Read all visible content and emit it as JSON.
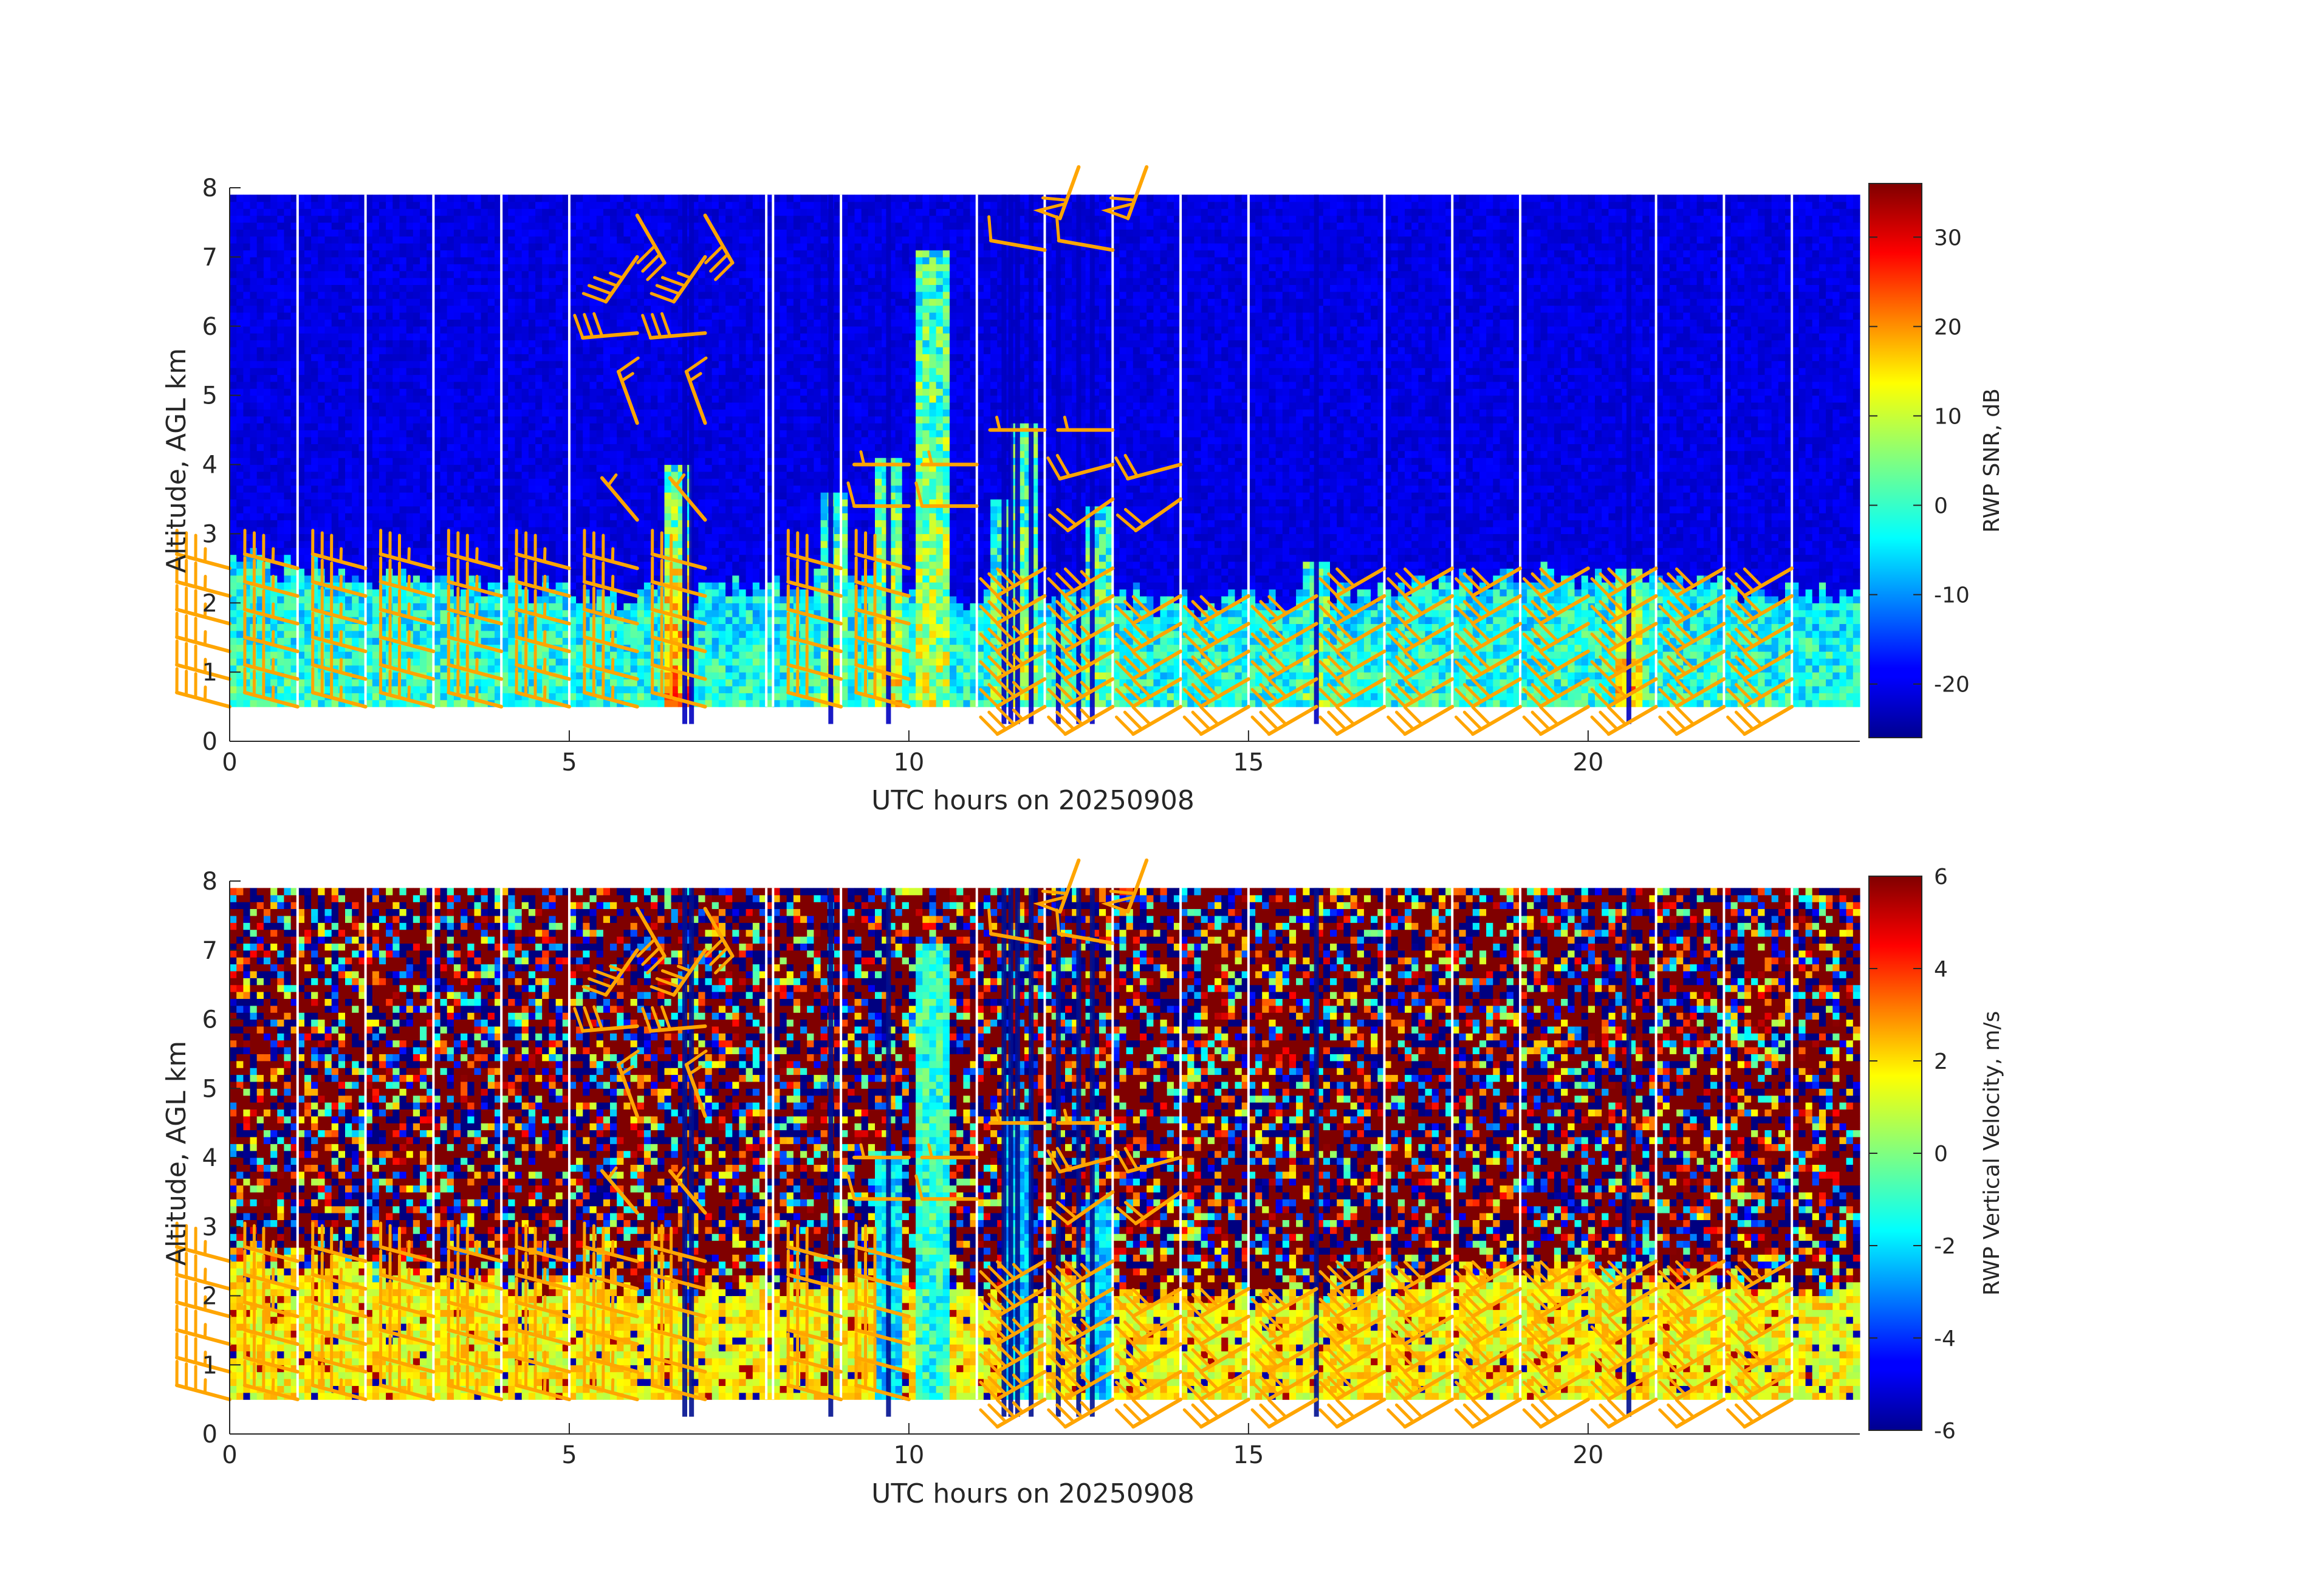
{
  "colors": {
    "barb": "#ffa500",
    "axis": "#262626",
    "missing_column": "#ffffff",
    "colormap": "jet"
  },
  "chart_data": [
    {
      "type": "heatmap",
      "name": "snr-panel",
      "title": "",
      "xlabel": "UTC hours on 20250908",
      "ylabel": "Altitude, AGL km",
      "xlim": [
        0,
        24
      ],
      "ylim": [
        0,
        8
      ],
      "xticks": [
        0,
        5,
        10,
        15,
        20
      ],
      "yticks": [
        0,
        1,
        2,
        3,
        4,
        5,
        6,
        7,
        8
      ],
      "data_range_km": [
        0.5,
        7.9
      ],
      "colorbar": {
        "label": "RWP SNR, dB",
        "range": [
          -26,
          36
        ],
        "ticks": [
          -20,
          -10,
          0,
          10,
          20,
          30
        ]
      },
      "description_values": {
        "background_value": -20,
        "boundary_layer_top_km": [
          [
            0,
            2.6
          ],
          [
            2,
            2.4
          ],
          [
            4,
            2.2
          ],
          [
            6,
            2.1
          ],
          [
            8,
            2.2
          ],
          [
            9,
            2.3
          ],
          [
            11,
            2.0
          ],
          [
            12,
            2.2
          ],
          [
            14,
            2.0
          ],
          [
            16,
            2.1
          ],
          [
            18,
            2.3
          ],
          [
            20,
            2.4
          ],
          [
            24,
            2.1
          ]
        ],
        "boundary_layer_value": -5
      },
      "convective_columns": [
        {
          "x": 6.6,
          "top_km": 4.0,
          "peak": 25
        },
        {
          "x": 8.9,
          "top_km": 3.6,
          "peak": 10
        },
        {
          "x": 9.7,
          "top_km": 4.1,
          "peak": 15
        },
        {
          "x": 10.35,
          "top_km": 7.1,
          "peak": 10
        },
        {
          "x": 11.4,
          "top_km": 3.5,
          "peak": 5
        },
        {
          "x": 11.7,
          "top_km": 4.6,
          "peak": 10
        },
        {
          "x": 12.8,
          "top_km": 3.4,
          "peak": 5
        },
        {
          "x": 16.0,
          "top_km": 2.6,
          "peak": 5
        },
        {
          "x": 20.6,
          "top_km": 2.5,
          "peak": 25
        }
      ],
      "missing_columns_x": [
        1.0,
        2.0,
        3.0,
        4.0,
        5.0,
        7.9,
        8.0,
        9.0,
        11.0,
        12.0,
        13.0,
        14.0,
        15.0,
        17.0,
        18.0,
        19.0,
        21.0,
        22.0,
        23.0
      ],
      "dropout_columns_x": [
        6.7,
        6.8,
        8.85,
        9.7,
        11.4,
        11.5,
        11.6,
        11.8,
        12.2,
        12.5,
        12.7,
        16.0,
        20.6
      ]
    },
    {
      "type": "heatmap",
      "name": "velocity-panel",
      "title": "",
      "xlabel": "UTC hours on 20250908",
      "ylabel": "Altitude, AGL km",
      "xlim": [
        0,
        24
      ],
      "ylim": [
        0,
        8
      ],
      "xticks": [
        0,
        5,
        10,
        15,
        20
      ],
      "yticks": [
        0,
        1,
        2,
        3,
        4,
        5,
        6,
        7,
        8
      ],
      "data_range_km": [
        0.5,
        7.9
      ],
      "colorbar": {
        "label": "RWP Vertical Velocity, m/s",
        "range": [
          -6,
          6
        ],
        "ticks": [
          -6,
          -4,
          -2,
          0,
          2,
          4,
          6
        ]
      },
      "description_values": {
        "noise_value_range": [
          -6,
          6
        ],
        "boundary_layer_value": 1.5,
        "boundary_layer_top_km": [
          [
            0,
            2.6
          ],
          [
            2,
            2.4
          ],
          [
            4,
            2.2
          ],
          [
            6,
            2.1
          ],
          [
            8,
            2.2
          ],
          [
            9,
            2.3
          ],
          [
            11,
            2.0
          ],
          [
            12,
            2.2
          ],
          [
            14,
            2.0
          ],
          [
            16,
            2.1
          ],
          [
            18,
            2.3
          ],
          [
            20,
            2.4
          ],
          [
            24,
            2.1
          ]
        ]
      },
      "updraft_columns": [
        {
          "x": 10.35,
          "top_km": 7.1,
          "value": -1
        },
        {
          "x": 9.7,
          "top_km": 4.1,
          "value": -2
        },
        {
          "x": 11.6,
          "top_km": 4.6,
          "value": -2
        },
        {
          "x": 12.8,
          "top_km": 3.4,
          "value": -2
        }
      ],
      "missing_columns_x": [
        1.0,
        2.0,
        3.0,
        4.0,
        5.0,
        7.9,
        8.0,
        9.0,
        11.0,
        12.0,
        13.0,
        14.0,
        15.0,
        17.0,
        18.0,
        19.0,
        21.0,
        22.0,
        23.0
      ],
      "dropout_columns_x": [
        6.7,
        6.8,
        8.85,
        9.7,
        11.4,
        11.5,
        11.6,
        11.8,
        12.2,
        12.5,
        12.7,
        16.0,
        20.6
      ]
    }
  ],
  "wind_barbs": {
    "units": "knots (full barb 10, half barb 5, flag 50)",
    "low_levels_km": [
      0.5,
      0.9,
      1.3,
      1.7,
      2.1,
      2.5
    ],
    "low_columns": [
      {
        "x": 0.0,
        "levels": [
          0,
          1,
          2,
          3,
          4,
          5
        ],
        "dir": 285,
        "spd": 35
      },
      {
        "x": 1.0,
        "levels": [
          0,
          1,
          2,
          3,
          4,
          5
        ],
        "dir": 285,
        "spd": 35
      },
      {
        "x": 2.0,
        "levels": [
          0,
          1,
          2,
          3,
          4,
          5
        ],
        "dir": 285,
        "spd": 35
      },
      {
        "x": 3.0,
        "levels": [
          0,
          1,
          2,
          3,
          4,
          5
        ],
        "dir": 285,
        "spd": 35
      },
      {
        "x": 4.0,
        "levels": [
          0,
          1,
          2,
          3,
          4,
          5
        ],
        "dir": 285,
        "spd": 35
      },
      {
        "x": 5.0,
        "levels": [
          0,
          1,
          2,
          3,
          4,
          5
        ],
        "dir": 285,
        "spd": 35
      },
      {
        "x": 6.0,
        "levels": [
          0,
          1,
          2,
          3,
          4,
          5
        ],
        "dir": 285,
        "spd": 35
      },
      {
        "x": 7.0,
        "levels": [
          0,
          1,
          2,
          3,
          4,
          5
        ],
        "dir": 285,
        "spd": 30
      },
      {
        "x": 9.0,
        "levels": [
          0,
          1,
          2,
          3,
          4,
          5
        ],
        "dir": 285,
        "spd": 30
      },
      {
        "x": 10.0,
        "levels": [
          0,
          1,
          2,
          3,
          4,
          5
        ],
        "dir": 285,
        "spd": 30
      },
      {
        "x": 12.0,
        "levels": [
          0,
          1,
          2,
          3,
          4,
          5
        ],
        "dir": 240,
        "spd": 35
      },
      {
        "x": 13.0,
        "levels": [
          0,
          1,
          2,
          3,
          4,
          5
        ],
        "dir": 240,
        "spd": 35
      },
      {
        "x": 14.0,
        "levels": [
          0,
          1,
          2,
          3,
          4
        ],
        "dir": 240,
        "spd": 30
      },
      {
        "x": 15.0,
        "levels": [
          0,
          1,
          2,
          3,
          4
        ],
        "dir": 240,
        "spd": 30
      },
      {
        "x": 16.0,
        "levels": [
          0,
          1,
          2,
          3,
          4
        ],
        "dir": 240,
        "spd": 30
      },
      {
        "x": 17.0,
        "levels": [
          0,
          1,
          2,
          3,
          4,
          5
        ],
        "dir": 240,
        "spd": 30
      },
      {
        "x": 18.0,
        "levels": [
          0,
          1,
          2,
          3,
          4,
          5
        ],
        "dir": 240,
        "spd": 30
      },
      {
        "x": 19.0,
        "levels": [
          0,
          1,
          2,
          3,
          4,
          5
        ],
        "dir": 240,
        "spd": 30
      },
      {
        "x": 20.0,
        "levels": [
          0,
          1,
          2,
          3,
          4,
          5
        ],
        "dir": 240,
        "spd": 30
      },
      {
        "x": 21.0,
        "levels": [
          0,
          1,
          2,
          3,
          4,
          5
        ],
        "dir": 240,
        "spd": 30
      },
      {
        "x": 22.0,
        "levels": [
          0,
          1,
          2,
          3,
          4,
          5
        ],
        "dir": 240,
        "spd": 30
      },
      {
        "x": 23.0,
        "levels": [
          0,
          1,
          2,
          3,
          4,
          5
        ],
        "dir": 240,
        "spd": 30
      }
    ],
    "upper": [
      {
        "x": 6.0,
        "y": 3.2,
        "dir": 320,
        "spd": 5
      },
      {
        "x": 7.0,
        "y": 3.2,
        "dir": 320,
        "spd": 5
      },
      {
        "x": 6.0,
        "y": 4.6,
        "dir": 340,
        "spd": 15
      },
      {
        "x": 7.0,
        "y": 4.6,
        "dir": 340,
        "spd": 15
      },
      {
        "x": 6.0,
        "y": 5.9,
        "dir": 265,
        "spd": 30
      },
      {
        "x": 7.0,
        "y": 5.9,
        "dir": 265,
        "spd": 30
      },
      {
        "x": 6.0,
        "y": 7.0,
        "dir": 215,
        "spd": 35
      },
      {
        "x": 7.0,
        "y": 7.0,
        "dir": 215,
        "spd": 35
      },
      {
        "x": 6.0,
        "y": 7.6,
        "dir": 150,
        "spd": 30
      },
      {
        "x": 7.0,
        "y": 7.6,
        "dir": 150,
        "spd": 30
      },
      {
        "x": 10.0,
        "y": 3.4,
        "dir": 270,
        "spd": 10
      },
      {
        "x": 11.0,
        "y": 3.4,
        "dir": 270,
        "spd": 10
      },
      {
        "x": 10.0,
        "y": 4.0,
        "dir": 270,
        "spd": 5
      },
      {
        "x": 11.0,
        "y": 4.0,
        "dir": 270,
        "spd": 5
      },
      {
        "x": 12.0,
        "y": 4.5,
        "dir": 270,
        "spd": 5
      },
      {
        "x": 13.0,
        "y": 4.5,
        "dir": 270,
        "spd": 5
      },
      {
        "x": 12.0,
        "y": 7.1,
        "dir": 280,
        "spd": 10
      },
      {
        "x": 13.0,
        "y": 7.1,
        "dir": 280,
        "spd": 10
      },
      {
        "x": 13.0,
        "y": 3.5,
        "dir": 235,
        "spd": 20
      },
      {
        "x": 14.0,
        "y": 3.5,
        "dir": 235,
        "spd": 20
      },
      {
        "x": 13.0,
        "y": 4.0,
        "dir": 255,
        "spd": 20
      },
      {
        "x": 14.0,
        "y": 4.0,
        "dir": 255,
        "spd": 20
      },
      {
        "x": 12.5,
        "y": 8.3,
        "dir": 200,
        "spd": 60
      },
      {
        "x": 13.5,
        "y": 8.3,
        "dir": 200,
        "spd": 60
      }
    ]
  }
}
